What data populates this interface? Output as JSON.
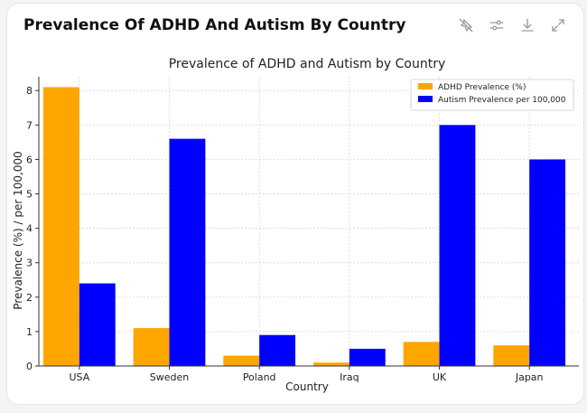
{
  "card": {
    "title": "Prevalence Of ADHD And Autism By Country",
    "tools": [
      {
        "name": "pin-off-icon"
      },
      {
        "name": "sliders-icon"
      },
      {
        "name": "download-icon"
      },
      {
        "name": "expand-icon"
      }
    ]
  },
  "colors": {
    "adhd": "#FFA500",
    "autism": "#0000FF",
    "grid": "#cfcfcf",
    "axis": "#333333"
  },
  "chart_data": {
    "type": "bar",
    "title": "Prevalence of ADHD and Autism by Country",
    "xlabel": "Country",
    "ylabel": "Prevalence (%) / per 100,000",
    "categories": [
      "USA",
      "Sweden",
      "Poland",
      "Iraq",
      "UK",
      "Japan"
    ],
    "series": [
      {
        "name": "ADHD Prevalence (%)",
        "values": [
          8.1,
          1.1,
          0.3,
          0.1,
          0.7,
          0.6
        ]
      },
      {
        "name": "Autism Prevalence per 100,000",
        "values": [
          2.4,
          6.6,
          0.9,
          0.5,
          7.0,
          6.0
        ]
      }
    ],
    "ylim": [
      0,
      8.4
    ],
    "yticks": [
      0,
      1,
      2,
      3,
      4,
      5,
      6,
      7,
      8
    ],
    "grid": true,
    "legend": "top-right"
  }
}
